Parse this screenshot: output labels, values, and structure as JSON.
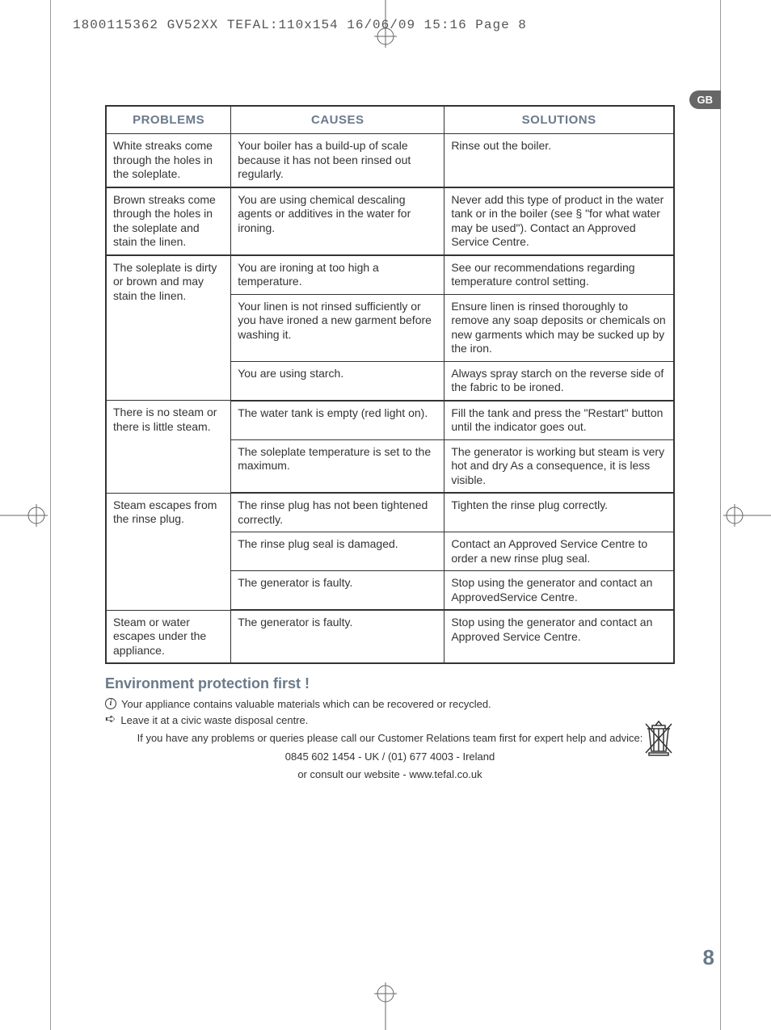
{
  "print_header": "1800115362 GV52XX TEFAL:110x154  16/06/09  15:16  Page 8",
  "lang_tab": "GB",
  "page_number": "8",
  "table": {
    "headers": {
      "problems": "PROBLEMS",
      "causes": "CAUSES",
      "solutions": "SOLUTIONS"
    },
    "rows": [
      {
        "p": "White streaks come through the holes in the soleplate.",
        "c": "Your boiler has a build-up of scale because it has not been rinsed out regularly.",
        "s": "Rinse out the boiler.",
        "section_end": true
      },
      {
        "p": "Brown streaks come through the holes in the soleplate and stain the linen.",
        "c": "You are using chemical descaling agents or additives in the water for ironing.",
        "s": "Never add this type of product in the water tank or in the boiler (see § \"for what water may be used\"). Contact an Approved Service Centre.",
        "section_end": true
      },
      {
        "p": "The soleplate is dirty or brown and may stain the linen.",
        "p_rowspan": 3,
        "c": "You are ironing at too high a temperature.",
        "s": "See our recommendations regarding temperature control setting."
      },
      {
        "c": "Your linen is not rinsed sufficiently or you have ironed a new garment before washing it.",
        "s": "Ensure linen is rinsed thoroughly to remove any soap deposits or chemicals on new garments which may be sucked up by the iron."
      },
      {
        "c": "You are using starch.",
        "s": "Always spray starch on the reverse side of the fabric to be ironed.",
        "section_end": true
      },
      {
        "p": "There is no steam or there is little steam.",
        "p_rowspan": 2,
        "c": "The water tank is empty (red light on).",
        "s": "Fill the tank and press the \"Restart\" button until the indicator goes out."
      },
      {
        "c": "The soleplate temperature is set to the maximum.",
        "s": "The generator is working but steam is very hot and dry As a consequence, it is less visible.",
        "section_end": true
      },
      {
        "p": "Steam escapes from the rinse plug.",
        "p_rowspan": 3,
        "c": "The rinse plug has not been tightened correctly.",
        "s": "Tighten the rinse plug correctly."
      },
      {
        "c": "The rinse plug seal is damaged.",
        "s": "Contact an Approved Service Centre to order a new rinse plug seal."
      },
      {
        "c": "The generator is faulty.",
        "s": "Stop using the generator and contact an ApprovedService Centre.",
        "section_end": true
      },
      {
        "p": "Steam or water escapes under the appliance.",
        "c": "The generator is faulty.",
        "s": "Stop using the generator and contact an Approved Service Centre.",
        "section_end": true
      }
    ]
  },
  "env": {
    "heading": "Environment protection first !",
    "line1": "Your appliance contains valuable materials which can be recovered or recycled.",
    "line2": "Leave it at a civic waste disposal centre.",
    "foot1": "If you have any problems or queries please call our Customer Relations team first for expert help and advice:",
    "foot2": "0845 602 1454 - UK / (01) 677 4003 - Ireland",
    "foot3": "or consult our website - www.tefal.co.uk"
  }
}
